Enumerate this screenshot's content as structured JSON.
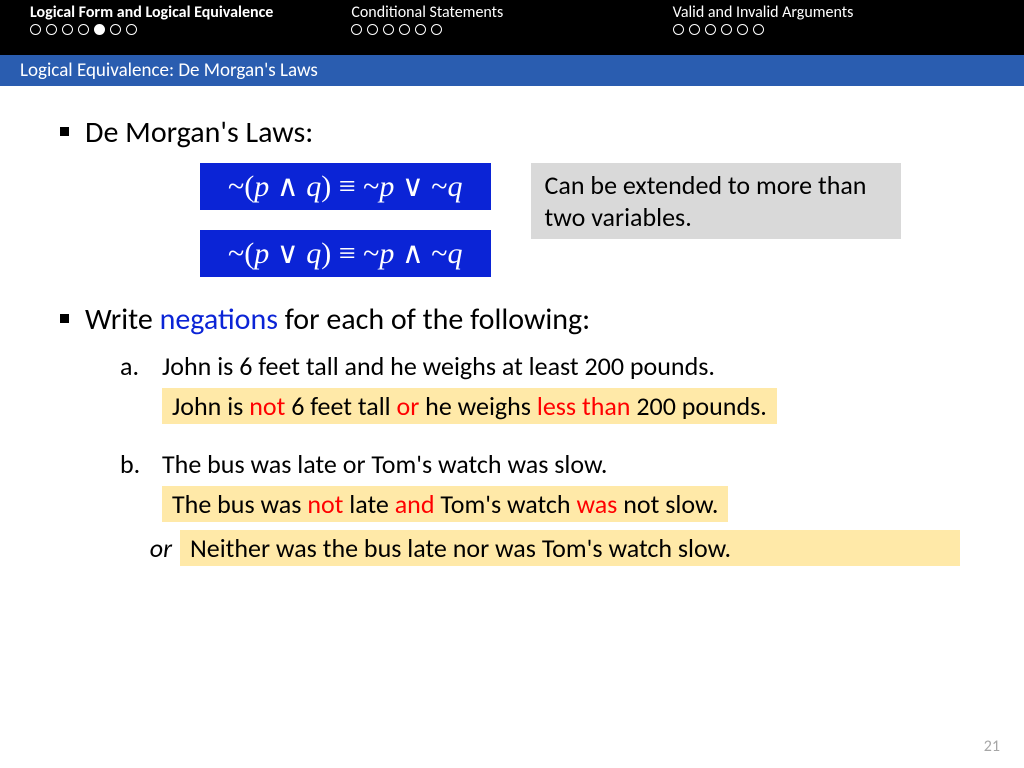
{
  "nav": {
    "sections": [
      {
        "title": "Logical Form and Logical Equivalence",
        "bold": true,
        "groups": [
          2,
          3,
          2
        ],
        "filled": 4
      },
      {
        "title": "Conditional Statements",
        "bold": false,
        "groups": [
          6
        ],
        "filled": -1
      },
      {
        "title": "Valid and Invalid Arguments",
        "bold": false,
        "groups": [
          6
        ],
        "filled": -1
      }
    ]
  },
  "subheader": "Logical Equivalence: De Morgan's Laws",
  "title1": "De Morgan's Laws:",
  "formula1_parts": [
    "~(",
    "p",
    " ∧ ",
    "q",
    ") ≡ ~",
    "p",
    " ∨ ~",
    "q"
  ],
  "formula2_parts": [
    "~(",
    "p",
    " ∨ ",
    "q",
    ") ≡ ~",
    "p",
    " ∧ ~",
    "q"
  ],
  "note": "Can be extended to more than two variables.",
  "title2_pre": "Write ",
  "title2_hl": "negations",
  "title2_post": " for each of the following:",
  "a_letter": "a.",
  "a_text": "John is 6 feet tall and he weighs at least 200 pounds.",
  "a_ans": {
    "p0": "John is ",
    "r0": "not",
    "p1": " 6 feet tall ",
    "r1": "or",
    "p2": " he weighs ",
    "r2": "less than",
    "p3": " 200 pounds."
  },
  "b_letter": "b.",
  "b_text": "The bus was late or Tom's watch was slow.",
  "b_ans": {
    "p0": "The bus was ",
    "r0": "not",
    "p1": " late ",
    "r1": "and",
    "p2": " Tom's watch ",
    "r2": "was",
    "p3": " not slow."
  },
  "or_label": "or",
  "or_ans": "Neither was the bus late nor was Tom's watch slow.",
  "pagenum": "21",
  "colors": {
    "blueFormula": "#0b24d6",
    "noteBg": "#d9d9d9",
    "answerBg": "#ffe9a8",
    "red": "#ff0000",
    "subheader": "#2a5db0"
  }
}
